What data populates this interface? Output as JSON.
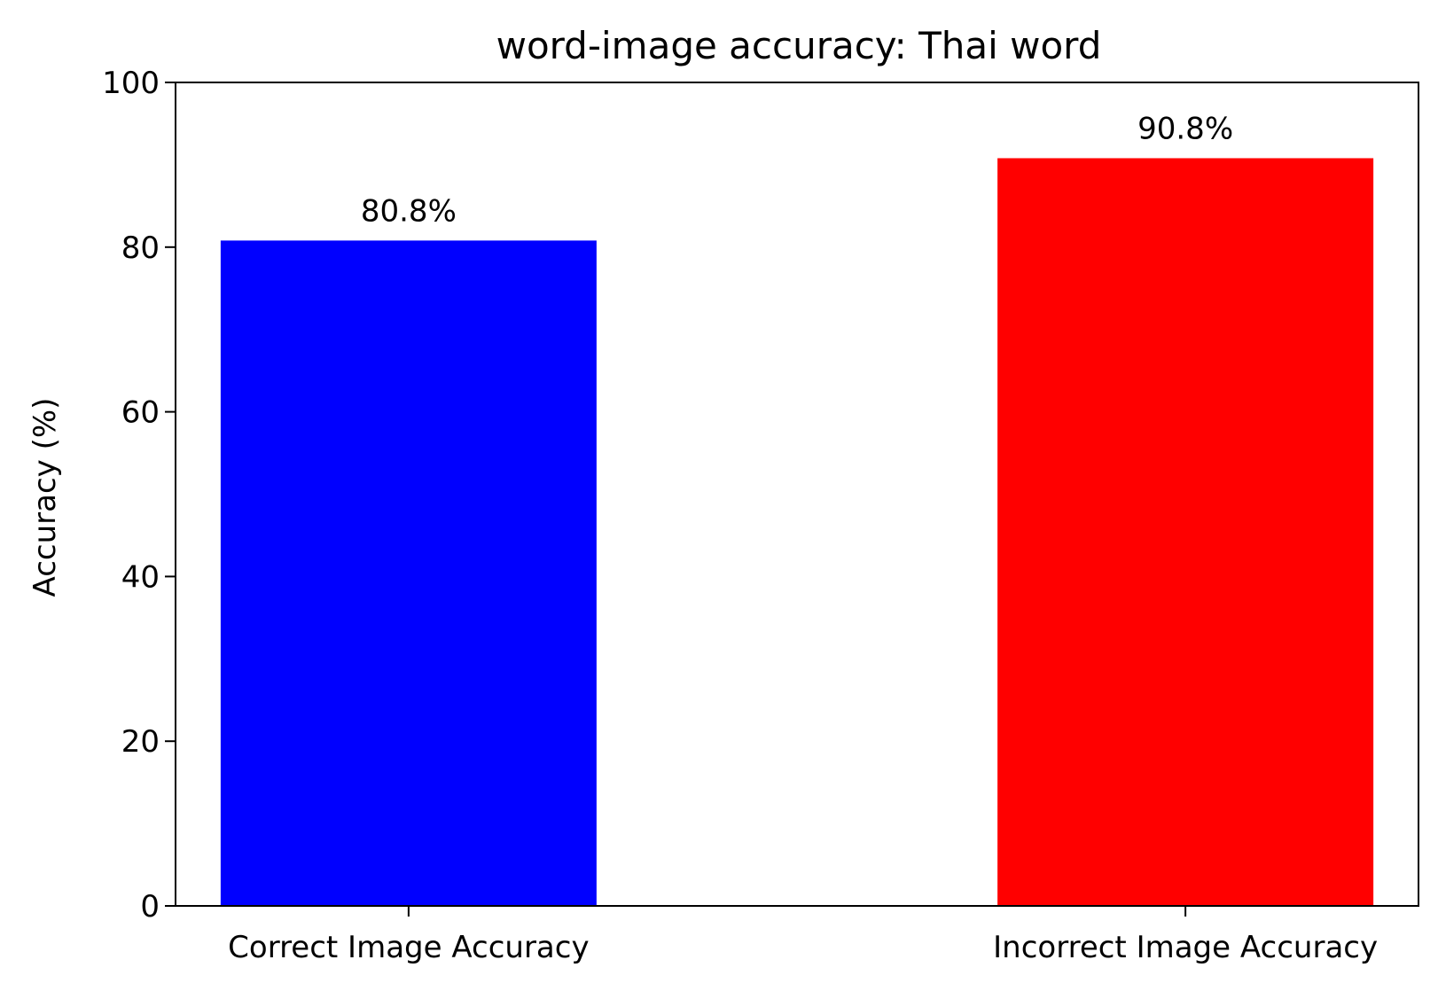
{
  "chart_data": {
    "type": "bar",
    "title": "word-image accuracy: Thai word",
    "xlabel": "",
    "ylabel": "Accuracy (%)",
    "categories": [
      "Correct Image Accuracy",
      "Incorrect Image Accuracy"
    ],
    "values": [
      80.8,
      90.8
    ],
    "value_labels": [
      "80.8%",
      "90.8%"
    ],
    "colors": [
      "#0000ff",
      "#ff0000"
    ],
    "ylim": [
      0,
      100
    ],
    "yticks": [
      0,
      20,
      40,
      60,
      80,
      100
    ],
    "ytick_labels": [
      "0",
      "20",
      "40",
      "60",
      "80",
      "100"
    ],
    "grid": false,
    "legend": "none"
  }
}
